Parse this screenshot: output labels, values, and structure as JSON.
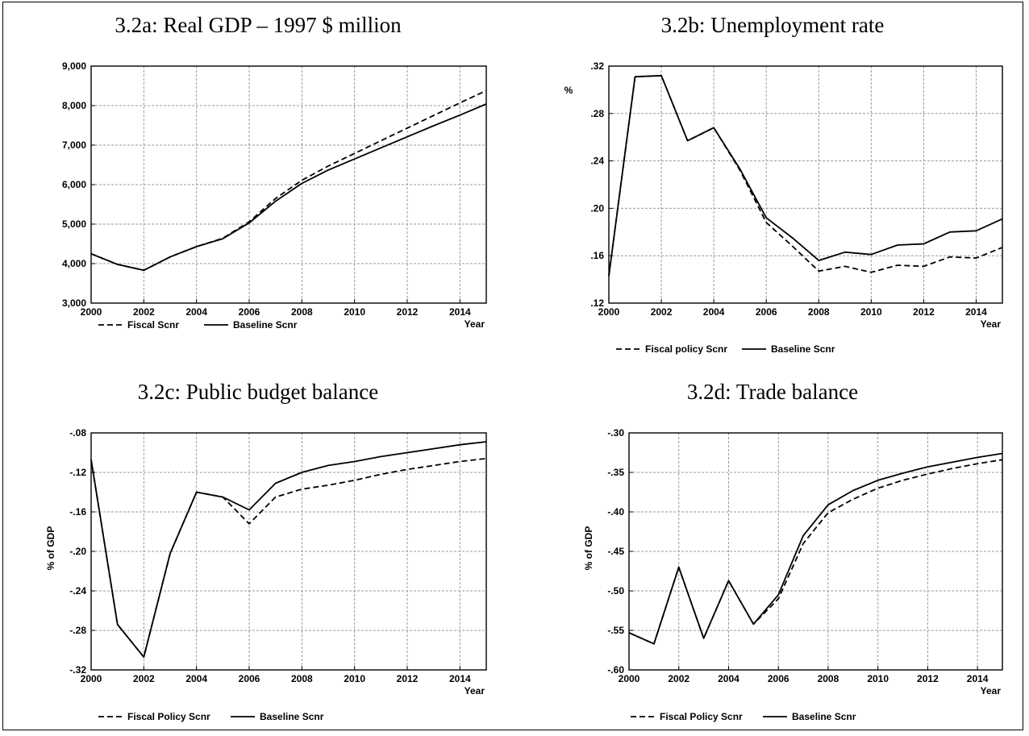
{
  "chart_data": [
    {
      "type": "line",
      "title": "3.2a: Real GDP – 1997 $ million",
      "xlabel": "Year",
      "ylabel": "",
      "x": [
        2000,
        2001,
        2002,
        2003,
        2004,
        2005,
        2006,
        2007,
        2008,
        2009,
        2010,
        2011,
        2012,
        2013,
        2014,
        2015
      ],
      "xlim": [
        2000,
        2015
      ],
      "ylim": [
        3000,
        9000
      ],
      "xticks": [
        2000,
        2002,
        2004,
        2006,
        2008,
        2010,
        2012,
        2014
      ],
      "xtick_labels": [
        "2000",
        "2002",
        "2004",
        "2006",
        "2008",
        "2010",
        "2012",
        "2014"
      ],
      "yticks": [
        3000,
        4000,
        5000,
        6000,
        7000,
        8000,
        9000
      ],
      "ytick_labels": [
        "3,000",
        "4,000",
        "5,000",
        "6,000",
        "7,000",
        "8,000",
        "9,000"
      ],
      "grid": true,
      "legend_position": "bottom",
      "series": [
        {
          "name": "Fiscal Scnr",
          "style": "dashed",
          "values": [
            4250,
            3980,
            3830,
            4170,
            4430,
            4640,
            5060,
            5650,
            6110,
            6470,
            6790,
            7110,
            7430,
            7750,
            8070,
            8380
          ]
        },
        {
          "name": "Baseline Scnr",
          "style": "solid",
          "values": [
            4250,
            3980,
            3830,
            4170,
            4430,
            4630,
            5030,
            5580,
            6030,
            6370,
            6650,
            6930,
            7210,
            7490,
            7760,
            8040
          ]
        }
      ]
    },
    {
      "type": "line",
      "title": "3.2b: Unemployment rate",
      "xlabel": "Year",
      "ylabel": "%",
      "x": [
        2000,
        2001,
        2002,
        2003,
        2004,
        2005,
        2006,
        2007,
        2008,
        2009,
        2010,
        2011,
        2012,
        2013,
        2014,
        2015
      ],
      "xlim": [
        2000,
        2015
      ],
      "ylim": [
        0.12,
        0.32
      ],
      "xticks": [
        2000,
        2002,
        2004,
        2006,
        2008,
        2010,
        2012,
        2014
      ],
      "xtick_labels": [
        "2000",
        "2002",
        "2004",
        "2006",
        "2008",
        "2010",
        "2012",
        "2014"
      ],
      "yticks": [
        0.12,
        0.16,
        0.2,
        0.24,
        0.28,
        0.32
      ],
      "ytick_labels": [
        ".12",
        ".16",
        ".20",
        ".24",
        ".28",
        ".32"
      ],
      "grid": true,
      "legend_position": "bottom",
      "series": [
        {
          "name": "Fiscal policy Scnr",
          "style": "dashed",
          "values": [
            0.143,
            0.311,
            0.312,
            0.257,
            0.268,
            0.232,
            0.188,
            0.168,
            0.147,
            0.151,
            0.146,
            0.152,
            0.151,
            0.159,
            0.158,
            0.167
          ]
        },
        {
          "name": "Baseline Scnr",
          "style": "solid",
          "values": [
            0.143,
            0.311,
            0.312,
            0.257,
            0.268,
            0.233,
            0.192,
            0.175,
            0.156,
            0.163,
            0.161,
            0.169,
            0.17,
            0.18,
            0.181,
            0.191
          ]
        }
      ]
    },
    {
      "type": "line",
      "title": "3.2c: Public budget balance",
      "xlabel": "Year",
      "ylabel": "% of GDP",
      "x": [
        2000,
        2001,
        2002,
        2003,
        2004,
        2005,
        2006,
        2007,
        2008,
        2009,
        2010,
        2011,
        2012,
        2013,
        2014,
        2015
      ],
      "xlim": [
        2000,
        2015
      ],
      "ylim": [
        -0.32,
        -0.08
      ],
      "xticks": [
        2000,
        2002,
        2004,
        2006,
        2008,
        2010,
        2012,
        2014
      ],
      "xtick_labels": [
        "2000",
        "2002",
        "2004",
        "2006",
        "2008",
        "2010",
        "2012",
        "2014"
      ],
      "yticks": [
        -0.32,
        -0.28,
        -0.24,
        -0.2,
        -0.16,
        -0.12,
        -0.08
      ],
      "ytick_labels": [
        "-.32",
        "-.28",
        "-.24",
        "-.20",
        "-.16",
        "-.12",
        "-.08"
      ],
      "grid": true,
      "legend_position": "bottom",
      "series": [
        {
          "name": "Fiscal Policy Scnr",
          "style": "dashed",
          "values": [
            -0.107,
            -0.274,
            -0.307,
            -0.202,
            -0.14,
            -0.145,
            -0.172,
            -0.145,
            -0.137,
            -0.133,
            -0.128,
            -0.122,
            -0.117,
            -0.113,
            -0.109,
            -0.106
          ]
        },
        {
          "name": "Baseline Scnr",
          "style": "solid",
          "values": [
            -0.107,
            -0.274,
            -0.307,
            -0.202,
            -0.14,
            -0.145,
            -0.158,
            -0.131,
            -0.12,
            -0.113,
            -0.109,
            -0.104,
            -0.1,
            -0.096,
            -0.092,
            -0.089
          ]
        }
      ]
    },
    {
      "type": "line",
      "title": "3.2d: Trade balance",
      "xlabel": "Year",
      "ylabel": "% of GDP",
      "x": [
        2000,
        2001,
        2002,
        2003,
        2004,
        2005,
        2006,
        2007,
        2008,
        2009,
        2010,
        2011,
        2012,
        2013,
        2014,
        2015
      ],
      "xlim": [
        2000,
        2015
      ],
      "ylim": [
        -0.6,
        -0.3
      ],
      "xticks": [
        2000,
        2002,
        2004,
        2006,
        2008,
        2010,
        2012,
        2014
      ],
      "xtick_labels": [
        "2000",
        "2002",
        "2004",
        "2006",
        "2008",
        "2010",
        "2012",
        "2014"
      ],
      "yticks": [
        -0.6,
        -0.55,
        -0.5,
        -0.45,
        -0.4,
        -0.35,
        -0.3
      ],
      "ytick_labels": [
        "-.60",
        "-.55",
        "-.50",
        "-.45",
        "-.40",
        "-.35",
        "-.30"
      ],
      "grid": true,
      "legend_position": "bottom",
      "series": [
        {
          "name": "Fiscal Policy Scnr",
          "style": "dashed",
          "values": [
            -0.553,
            -0.567,
            -0.47,
            -0.56,
            -0.487,
            -0.542,
            -0.51,
            -0.44,
            -0.401,
            -0.384,
            -0.37,
            -0.36,
            -0.352,
            -0.345,
            -0.339,
            -0.334
          ]
        },
        {
          "name": "Baseline Scnr",
          "style": "solid",
          "values": [
            -0.553,
            -0.567,
            -0.47,
            -0.56,
            -0.487,
            -0.542,
            -0.505,
            -0.43,
            -0.391,
            -0.373,
            -0.36,
            -0.351,
            -0.343,
            -0.337,
            -0.331,
            -0.326
          ]
        }
      ]
    }
  ]
}
